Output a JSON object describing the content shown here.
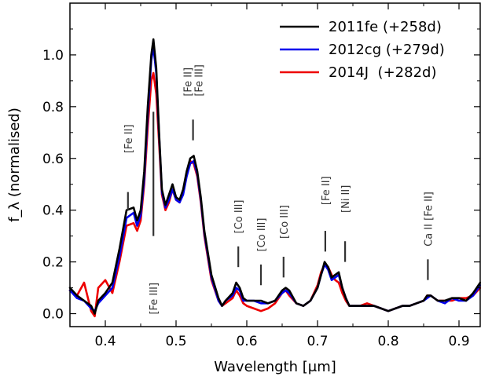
{
  "chart_data": {
    "type": "line",
    "title": "",
    "xlabel": "Wavelength [μm]",
    "ylabel": "f_λ (normalised)",
    "xlim": [
      0.35,
      0.93
    ],
    "ylim": [
      -0.05,
      1.2
    ],
    "x_ticks": [
      0.4,
      0.5,
      0.6,
      0.7,
      0.8,
      0.9
    ],
    "x_tick_labels": [
      "0.4",
      "0.5",
      "0.6",
      "0.7",
      "0.8",
      "0.9"
    ],
    "y_ticks": [
      0.0,
      0.2,
      0.4,
      0.6,
      0.8,
      1.0
    ],
    "y_tick_labels": [
      "0.0",
      "0.2",
      "0.4",
      "0.6",
      "0.8",
      "1.0"
    ],
    "grid": false,
    "legend_position": "top-right",
    "series": [
      {
        "name": "2011fe (+258d)",
        "color": "#000000",
        "x": [
          0.35,
          0.36,
          0.37,
          0.38,
          0.385,
          0.39,
          0.4,
          0.41,
          0.42,
          0.43,
          0.44,
          0.445,
          0.45,
          0.455,
          0.46,
          0.465,
          0.468,
          0.472,
          0.476,
          0.48,
          0.485,
          0.49,
          0.495,
          0.5,
          0.505,
          0.51,
          0.515,
          0.52,
          0.525,
          0.53,
          0.535,
          0.54,
          0.55,
          0.56,
          0.565,
          0.57,
          0.58,
          0.585,
          0.59,
          0.595,
          0.6,
          0.61,
          0.62,
          0.63,
          0.64,
          0.65,
          0.655,
          0.66,
          0.67,
          0.68,
          0.69,
          0.7,
          0.705,
          0.71,
          0.715,
          0.72,
          0.725,
          0.73,
          0.735,
          0.74,
          0.745,
          0.75,
          0.76,
          0.77,
          0.78,
          0.79,
          0.8,
          0.81,
          0.82,
          0.83,
          0.84,
          0.85,
          0.855,
          0.86,
          0.87,
          0.88,
          0.89,
          0.9,
          0.91,
          0.92,
          0.93
        ],
        "y": [
          0.1,
          0.07,
          0.05,
          0.03,
          0.0,
          0.05,
          0.08,
          0.12,
          0.25,
          0.4,
          0.41,
          0.36,
          0.4,
          0.55,
          0.8,
          1.0,
          1.06,
          0.95,
          0.7,
          0.48,
          0.42,
          0.46,
          0.5,
          0.45,
          0.44,
          0.48,
          0.55,
          0.6,
          0.61,
          0.55,
          0.45,
          0.32,
          0.15,
          0.06,
          0.03,
          0.05,
          0.08,
          0.12,
          0.1,
          0.06,
          0.05,
          0.05,
          0.05,
          0.04,
          0.05,
          0.09,
          0.1,
          0.09,
          0.04,
          0.03,
          0.05,
          0.1,
          0.15,
          0.2,
          0.18,
          0.14,
          0.15,
          0.16,
          0.1,
          0.06,
          0.03,
          0.03,
          0.03,
          0.03,
          0.03,
          0.02,
          0.01,
          0.02,
          0.03,
          0.03,
          0.04,
          0.05,
          0.07,
          0.07,
          0.05,
          0.05,
          0.06,
          0.06,
          0.05,
          0.08,
          0.12
        ]
      },
      {
        "name": "2012cg (+279d)",
        "color": "#0000ee",
        "x": [
          0.35,
          0.36,
          0.37,
          0.38,
          0.385,
          0.39,
          0.4,
          0.41,
          0.42,
          0.43,
          0.44,
          0.445,
          0.45,
          0.455,
          0.46,
          0.465,
          0.468,
          0.472,
          0.476,
          0.48,
          0.485,
          0.49,
          0.495,
          0.5,
          0.505,
          0.51,
          0.515,
          0.52,
          0.525,
          0.53,
          0.535,
          0.54,
          0.55,
          0.56,
          0.565,
          0.57,
          0.58,
          0.585,
          0.59,
          0.595,
          0.6,
          0.61,
          0.62,
          0.63,
          0.64,
          0.65,
          0.655,
          0.66,
          0.67,
          0.68,
          0.69,
          0.7,
          0.705,
          0.71,
          0.715,
          0.72,
          0.725,
          0.73,
          0.735,
          0.74,
          0.745,
          0.75,
          0.76,
          0.77,
          0.78,
          0.79,
          0.8,
          0.81,
          0.82,
          0.83,
          0.84,
          0.85,
          0.855,
          0.86,
          0.87,
          0.88,
          0.89,
          0.9,
          0.91,
          0.92,
          0.93
        ],
        "y": [
          0.09,
          0.06,
          0.05,
          0.02,
          0.01,
          0.04,
          0.07,
          0.1,
          0.22,
          0.37,
          0.39,
          0.34,
          0.38,
          0.52,
          0.77,
          0.98,
          1.03,
          0.93,
          0.69,
          0.47,
          0.41,
          0.44,
          0.48,
          0.44,
          0.43,
          0.46,
          0.53,
          0.58,
          0.59,
          0.54,
          0.44,
          0.31,
          0.14,
          0.05,
          0.03,
          0.05,
          0.07,
          0.1,
          0.09,
          0.05,
          0.05,
          0.05,
          0.04,
          0.04,
          0.05,
          0.08,
          0.09,
          0.08,
          0.04,
          0.03,
          0.05,
          0.1,
          0.15,
          0.19,
          0.17,
          0.13,
          0.14,
          0.15,
          0.1,
          0.06,
          0.03,
          0.03,
          0.03,
          0.03,
          0.03,
          0.02,
          0.01,
          0.02,
          0.03,
          0.03,
          0.04,
          0.05,
          0.06,
          0.07,
          0.05,
          0.04,
          0.06,
          0.05,
          0.05,
          0.07,
          0.11
        ]
      },
      {
        "name": "2014J  (+282d)",
        "color": "#ee0000",
        "x": [
          0.35,
          0.36,
          0.37,
          0.38,
          0.385,
          0.39,
          0.4,
          0.41,
          0.42,
          0.43,
          0.44,
          0.445,
          0.45,
          0.455,
          0.46,
          0.465,
          0.468,
          0.472,
          0.476,
          0.48,
          0.485,
          0.49,
          0.495,
          0.5,
          0.505,
          0.51,
          0.515,
          0.52,
          0.525,
          0.53,
          0.535,
          0.54,
          0.55,
          0.56,
          0.565,
          0.57,
          0.58,
          0.585,
          0.59,
          0.595,
          0.6,
          0.61,
          0.62,
          0.63,
          0.64,
          0.65,
          0.655,
          0.66,
          0.67,
          0.68,
          0.69,
          0.7,
          0.705,
          0.71,
          0.715,
          0.72,
          0.725,
          0.73,
          0.735,
          0.74,
          0.745,
          0.75,
          0.76,
          0.77,
          0.78,
          0.79,
          0.8,
          0.81,
          0.82,
          0.83,
          0.84,
          0.85,
          0.855,
          0.86,
          0.87,
          0.88,
          0.89,
          0.9,
          0.91,
          0.92,
          0.93
        ],
        "y": [
          0.09,
          0.07,
          0.12,
          0.01,
          -0.01,
          0.1,
          0.13,
          0.08,
          0.2,
          0.34,
          0.35,
          0.32,
          0.36,
          0.5,
          0.72,
          0.9,
          0.93,
          0.85,
          0.66,
          0.46,
          0.4,
          0.43,
          0.48,
          0.44,
          0.43,
          0.47,
          0.54,
          0.59,
          0.58,
          0.53,
          0.43,
          0.3,
          0.13,
          0.05,
          0.03,
          0.04,
          0.06,
          0.09,
          0.07,
          0.04,
          0.03,
          0.02,
          0.01,
          0.02,
          0.04,
          0.08,
          0.09,
          0.07,
          0.04,
          0.03,
          0.05,
          0.11,
          0.16,
          0.19,
          0.18,
          0.15,
          0.13,
          0.12,
          0.08,
          0.05,
          0.03,
          0.03,
          0.03,
          0.04,
          0.03,
          0.02,
          0.01,
          0.02,
          0.03,
          0.03,
          0.04,
          0.05,
          0.07,
          0.07,
          0.05,
          0.05,
          0.05,
          0.06,
          0.06,
          0.07,
          0.1
        ]
      }
    ],
    "annotations": [
      {
        "text": "[Fe II]",
        "x": 0.432,
        "label_y": 0.62,
        "line_y": [
          0.47,
          0.4
        ],
        "side": "above"
      },
      {
        "text": "[Fe III]",
        "x": 0.468,
        "label_y": 0.12,
        "line_y": [
          0.78,
          0.3
        ],
        "side": "below"
      },
      {
        "text": "[Fe II]\n[Fe III]",
        "x": 0.524,
        "label_y": 0.84,
        "line_y": [
          0.75,
          0.67
        ],
        "side": "above"
      },
      {
        "text": "[Co III]",
        "x": 0.588,
        "label_y": 0.31,
        "line_y": [
          0.26,
          0.18
        ],
        "side": "above"
      },
      {
        "text": "[Co III]",
        "x": 0.62,
        "label_y": 0.24,
        "line_y": [
          0.19,
          0.11
        ],
        "side": "above"
      },
      {
        "text": "[Co III]",
        "x": 0.652,
        "label_y": 0.29,
        "line_y": [
          0.22,
          0.14
        ],
        "side": "above"
      },
      {
        "text": "[Fe II]",
        "x": 0.711,
        "label_y": 0.42,
        "line_y": [
          0.32,
          0.24
        ],
        "side": "above"
      },
      {
        "text": "[Ni II]",
        "x": 0.739,
        "label_y": 0.39,
        "line_y": [
          0.28,
          0.2
        ],
        "side": "above"
      },
      {
        "text": "Ca II [Fe II]",
        "x": 0.856,
        "label_y": 0.26,
        "line_y": [
          0.21,
          0.13
        ],
        "side": "above"
      }
    ]
  }
}
